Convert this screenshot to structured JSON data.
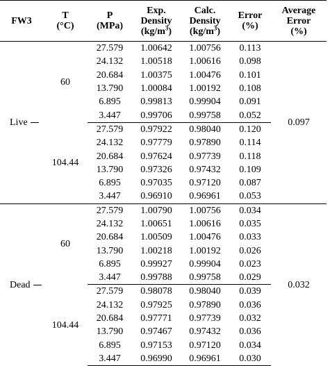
{
  "headers": {
    "fluid": "FW3",
    "t_line1": "T",
    "t_line2": "(°C)",
    "p_line1": "P",
    "p_line2": "(MPa)",
    "exp_line1": "Exp.",
    "exp_line2": "Density",
    "exp_line3": "(kg/m",
    "exp_sup": "3",
    "exp_close": ")",
    "calc_line1": "Calc.",
    "calc_line2": "Density",
    "calc_line3": "(kg/m",
    "calc_sup": "3",
    "calc_close": ")",
    "err_line1": "Error",
    "err_line2": "(%)",
    "avg_line1": "Average",
    "avg_line2": "Error",
    "avg_line3": "(%)"
  },
  "groups": [
    {
      "fluid": "Live",
      "average_error": "0.097",
      "blocks": [
        {
          "temperature": "60",
          "rows": [
            {
              "p": "27.579",
              "exp": "1.00642",
              "calc": "1.00756",
              "err": "0.113"
            },
            {
              "p": "24.132",
              "exp": "1.00518",
              "calc": "1.00616",
              "err": "0.098"
            },
            {
              "p": "20.684",
              "exp": "1.00375",
              "calc": "1.00476",
              "err": "0.101"
            },
            {
              "p": "13.790",
              "exp": "1.00084",
              "calc": "1.00192",
              "err": "0.108"
            },
            {
              "p": "6.895",
              "exp": "0.99813",
              "calc": "0.99904",
              "err": "0.091"
            },
            {
              "p": "3.447",
              "exp": "0.99706",
              "calc": "0.99758",
              "err": "0.052"
            }
          ]
        },
        {
          "temperature": "104.44",
          "rows": [
            {
              "p": "27.579",
              "exp": "0.97922",
              "calc": "0.98040",
              "err": "0.120"
            },
            {
              "p": "24.132",
              "exp": "0.97779",
              "calc": "0.97890",
              "err": "0.114"
            },
            {
              "p": "20.684",
              "exp": "0.97624",
              "calc": "0.97739",
              "err": "0.118"
            },
            {
              "p": "13.790",
              "exp": "0.97326",
              "calc": "0.97432",
              "err": "0.109"
            },
            {
              "p": "6.895",
              "exp": "0.97035",
              "calc": "0.97120",
              "err": "0.087"
            },
            {
              "p": "3.447",
              "exp": "0.96910",
              "calc": "0.96961",
              "err": "0.053"
            }
          ]
        }
      ]
    },
    {
      "fluid": "Dead",
      "average_error": "0.032",
      "blocks": [
        {
          "temperature": "60",
          "rows": [
            {
              "p": "27.579",
              "exp": "1.00790",
              "calc": "1.00756",
              "err": "0.034"
            },
            {
              "p": "24.132",
              "exp": "1.00651",
              "calc": "1.00616",
              "err": "0.035"
            },
            {
              "p": "20.684",
              "exp": "1.00509",
              "calc": "1.00476",
              "err": "0.033"
            },
            {
              "p": "13.790",
              "exp": "1.00218",
              "calc": "1.00192",
              "err": "0.026"
            },
            {
              "p": "6.895",
              "exp": "0.99927",
              "calc": "0.99904",
              "err": "0.023"
            },
            {
              "p": "3.447",
              "exp": "0.99788",
              "calc": "0.99758",
              "err": "0.029"
            }
          ]
        },
        {
          "temperature": "104.44",
          "rows": [
            {
              "p": "27.579",
              "exp": "0.98078",
              "calc": "0.98040",
              "err": "0.039"
            },
            {
              "p": "24.132",
              "exp": "0.97925",
              "calc": "0.97890",
              "err": "0.036"
            },
            {
              "p": "20.684",
              "exp": "0.97771",
              "calc": "0.97739",
              "err": "0.032"
            },
            {
              "p": "13.790",
              "exp": "0.97467",
              "calc": "0.97432",
              "err": "0.036"
            },
            {
              "p": "6.895",
              "exp": "0.97153",
              "calc": "0.97120",
              "err": "0.034"
            },
            {
              "p": "3.447",
              "exp": "0.96990",
              "calc": "0.96961",
              "err": "0.030"
            }
          ]
        }
      ]
    }
  ]
}
